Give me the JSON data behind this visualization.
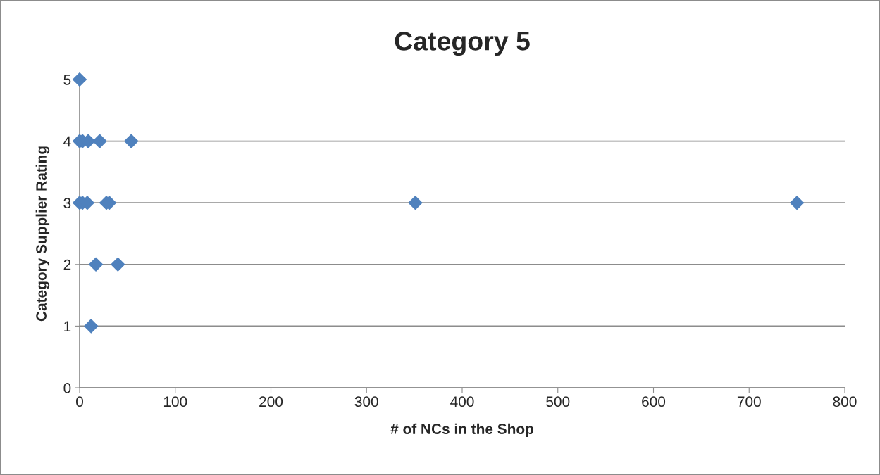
{
  "chart_data": {
    "type": "scatter",
    "title": "Category 5",
    "xlabel": "# of NCs in the Shop",
    "ylabel": "Category Supplier Rating",
    "x": [
      0,
      0,
      3,
      9,
      21,
      54,
      0,
      3,
      8,
      28,
      31,
      351,
      750,
      17,
      40,
      12
    ],
    "values": [
      5,
      4,
      4,
      4,
      4,
      4,
      3,
      3,
      3,
      3,
      3,
      3,
      3,
      2,
      2,
      1
    ],
    "color": "#4f81bd",
    "marker": "diamond",
    "grid": "y",
    "xlim": [
      0,
      800
    ],
    "xticks": [
      0,
      100,
      200,
      300,
      400,
      500,
      600,
      700,
      800
    ],
    "ylim": [
      0,
      5
    ],
    "yticks": [
      0,
      1,
      2,
      3,
      4,
      5
    ]
  }
}
